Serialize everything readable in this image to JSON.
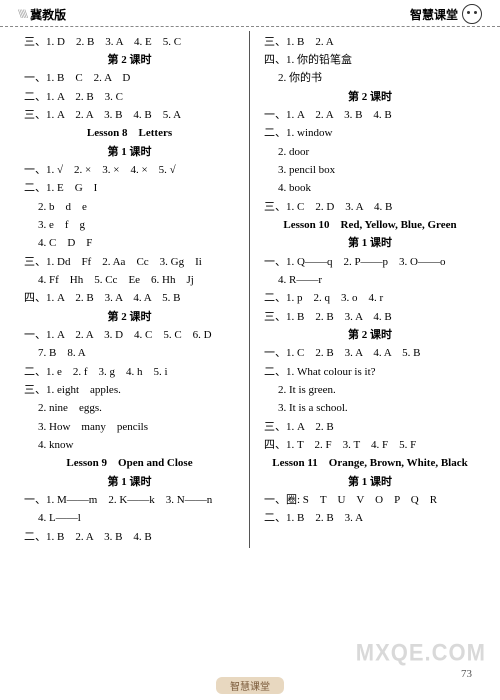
{
  "header": {
    "chevrons": "\\\\\\\\\\",
    "edition": "冀教版",
    "brand": "智慧课堂"
  },
  "left": [
    {
      "cls": "line",
      "t": "三、1. D　2. B　3. A　4. E　5. C"
    },
    {
      "cls": "line center",
      "t": "第 2 课时"
    },
    {
      "cls": "line",
      "t": "一、1. B　C　2. A　D"
    },
    {
      "cls": "line",
      "t": "二、1. A　2. B　3. C"
    },
    {
      "cls": "line",
      "t": "三、1. A　2. A　3. B　4. B　5. A"
    },
    {
      "cls": "line center",
      "t": "Lesson 8　Letters"
    },
    {
      "cls": "line center",
      "t": "第 1 课时"
    },
    {
      "cls": "line",
      "t": "一、1. √　2. ×　3. ×　4. ×　5. √"
    },
    {
      "cls": "line",
      "t": "二、1. E　G　I"
    },
    {
      "cls": "line indent",
      "t": "2. b　d　e"
    },
    {
      "cls": "line indent",
      "t": "3. e　f　g"
    },
    {
      "cls": "line indent",
      "t": "4. C　D　F"
    },
    {
      "cls": "line",
      "t": "三、1. Dd　Ff　2. Aa　Cc　3. Gg　Ii"
    },
    {
      "cls": "line indent",
      "t": "4. Ff　Hh　5. Cc　Ee　6. Hh　Jj"
    },
    {
      "cls": "line",
      "t": "四、1. A　2. B　3. A　4. A　5. B"
    },
    {
      "cls": "line center",
      "t": "第 2 课时"
    },
    {
      "cls": "line",
      "t": "一、1. A　2. A　3. D　4. C　5. C　6. D"
    },
    {
      "cls": "line indent",
      "t": "7. B　8. A"
    },
    {
      "cls": "line",
      "t": "二、1. e　2. f　3. g　4. h　5. i"
    },
    {
      "cls": "line",
      "t": "三、1. eight　apples."
    },
    {
      "cls": "line indent",
      "t": "2. nine　eggs."
    },
    {
      "cls": "line indent",
      "t": "3. How　many　pencils"
    },
    {
      "cls": "line indent",
      "t": "4. know"
    },
    {
      "cls": "line center",
      "t": "Lesson 9　Open and Close"
    },
    {
      "cls": "line center",
      "t": "第 1 课时"
    },
    {
      "cls": "line",
      "t": "一、1. M——m　2. K——k　3. N——n"
    },
    {
      "cls": "line indent",
      "t": "4. L——l"
    },
    {
      "cls": "line",
      "t": "二、1. B　2. A　3. B　4. B"
    }
  ],
  "right": [
    {
      "cls": "line",
      "t": "三、1. B　2. A"
    },
    {
      "cls": "line",
      "t": "四、1. 你的铅笔盒"
    },
    {
      "cls": "line indent",
      "t": "2. 你的书"
    },
    {
      "cls": "line center",
      "t": "第 2 课时"
    },
    {
      "cls": "line",
      "t": "一、1. A　2. A　3. B　4. B"
    },
    {
      "cls": "line",
      "t": "二、1. window"
    },
    {
      "cls": "line indent",
      "t": "2. door"
    },
    {
      "cls": "line indent",
      "t": "3. pencil box"
    },
    {
      "cls": "line indent",
      "t": "4. book"
    },
    {
      "cls": "line",
      "t": "三、1. C　2. D　3. A　4. B"
    },
    {
      "cls": "line center",
      "t": "Lesson 10　Red, Yellow, Blue, Green"
    },
    {
      "cls": "line center",
      "t": "第 1 课时"
    },
    {
      "cls": "line",
      "t": "一、1. Q——q　2. P——p　3. O——o"
    },
    {
      "cls": "line indent",
      "t": "4. R——r"
    },
    {
      "cls": "line",
      "t": "二、1. p　2. q　3. o　4. r"
    },
    {
      "cls": "line",
      "t": "三、1. B　2. B　3. A　4. B"
    },
    {
      "cls": "line center",
      "t": "第 2 课时"
    },
    {
      "cls": "line",
      "t": "一、1. C　2. B　3. A　4. A　5. B"
    },
    {
      "cls": "line",
      "t": "二、1. What colour is it?"
    },
    {
      "cls": "line indent",
      "t": "2. It is green."
    },
    {
      "cls": "line indent",
      "t": "3. It is a school."
    },
    {
      "cls": "line",
      "t": "三、1. A　2. B"
    },
    {
      "cls": "line",
      "t": "四、1. T　2. F　3. T　4. F　5. F"
    },
    {
      "cls": "line center",
      "t": "Lesson 11　Orange, Brown, White, Black"
    },
    {
      "cls": "line center",
      "t": "第 1 课时"
    },
    {
      "cls": "line",
      "t": "一、圈: S　T　U　V　O　P　Q　R"
    },
    {
      "cls": "line",
      "t": "二、1. B　2. B　3. A"
    }
  ],
  "pagenum": "73",
  "watermark": "MXQE.COM",
  "bottomTag": "智慧课堂"
}
